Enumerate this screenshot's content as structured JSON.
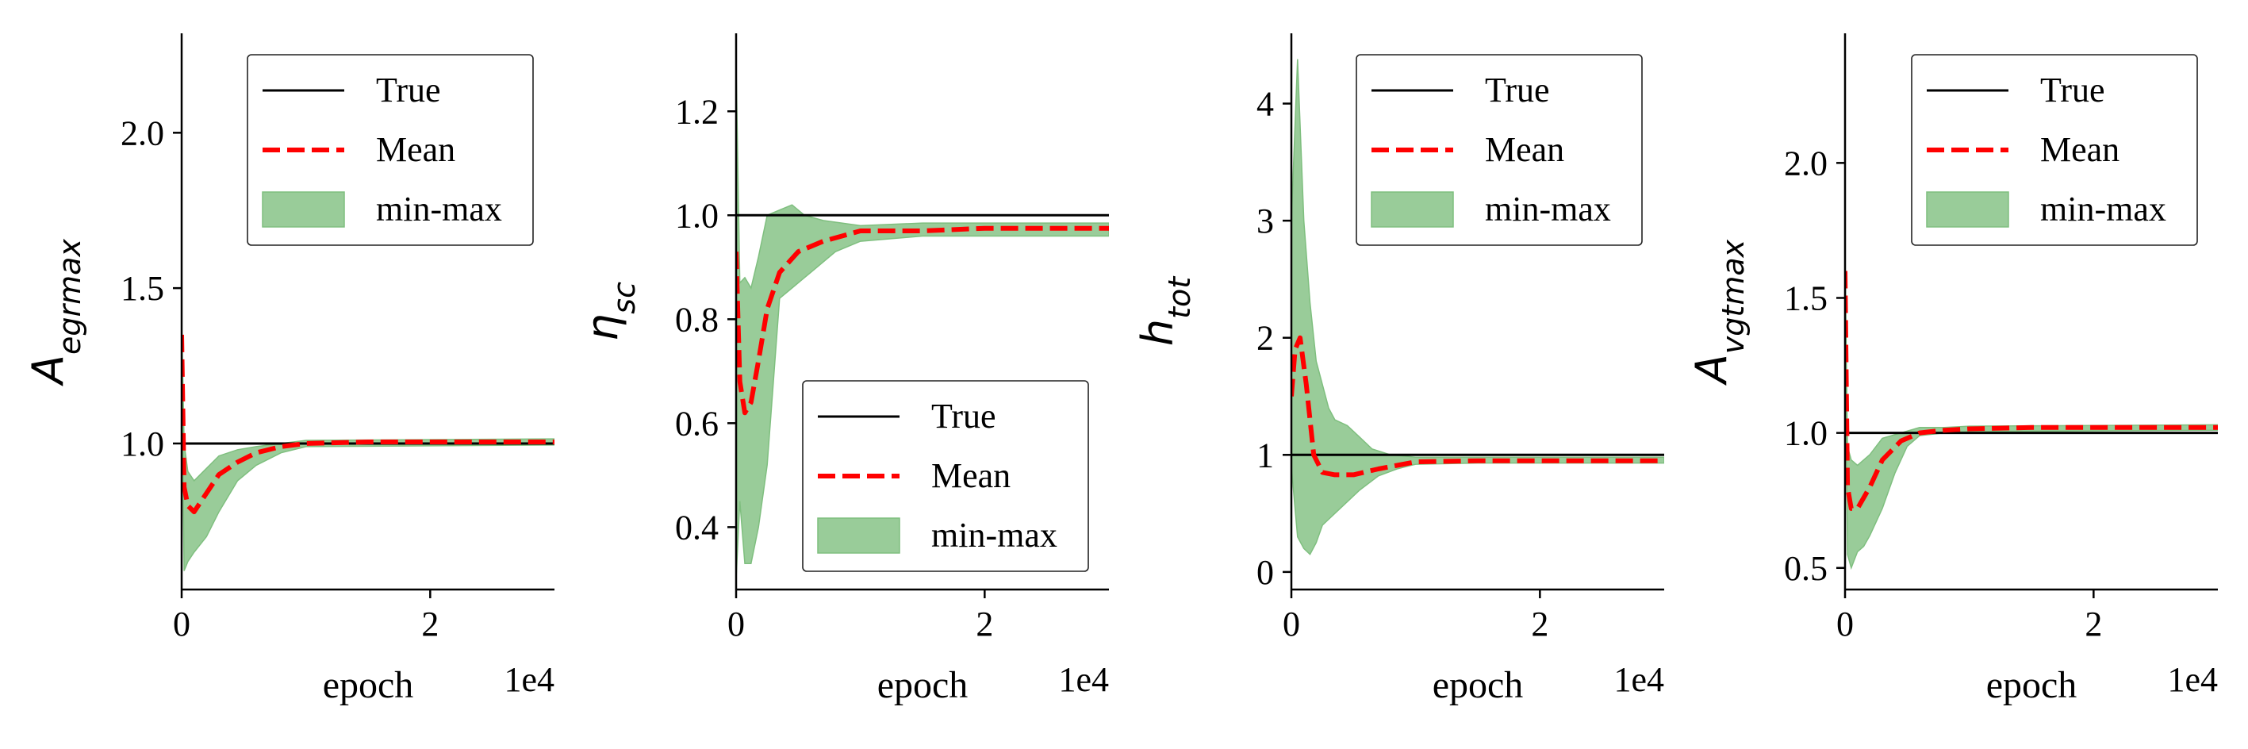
{
  "chart_data": [
    {
      "type": "line",
      "ylabel": "A",
      "ylabel_sub": "egrmax",
      "xlabel": "epoch",
      "x_exponent": "1e4",
      "xlim": [
        0,
        3
      ],
      "ylim": [
        0.53,
        2.32
      ],
      "xticks": [
        0,
        2
      ],
      "yticks": [
        1.0,
        1.5,
        2.0
      ],
      "ytick_labels": [
        "1.0",
        "1.5",
        "2.0"
      ],
      "legend_position": "upper right",
      "true_value": 1.0,
      "series": [
        {
          "name": "Mean",
          "x": [
            0,
            0.02,
            0.05,
            0.1,
            0.2,
            0.3,
            0.45,
            0.6,
            0.8,
            1.0,
            1.5,
            2.0,
            3.0
          ],
          "values": [
            1.35,
            0.86,
            0.8,
            0.78,
            0.84,
            0.9,
            0.94,
            0.97,
            0.99,
            1.0,
            1.005,
            1.005,
            1.005
          ]
        },
        {
          "name": "min-max upper",
          "x": [
            0,
            0.02,
            0.05,
            0.1,
            0.2,
            0.3,
            0.45,
            0.6,
            0.8,
            1.0,
            3.0
          ],
          "values": [
            1.4,
            1.0,
            0.91,
            0.88,
            0.92,
            0.96,
            0.98,
            0.99,
            1.0,
            1.01,
            1.015
          ]
        },
        {
          "name": "min-max lower",
          "x": [
            0,
            0.02,
            0.05,
            0.1,
            0.2,
            0.3,
            0.45,
            0.6,
            0.8,
            1.0,
            3.0
          ],
          "values": [
            1.3,
            0.59,
            0.62,
            0.65,
            0.7,
            0.78,
            0.88,
            0.93,
            0.97,
            0.99,
            0.995
          ]
        }
      ]
    },
    {
      "type": "line",
      "ylabel": "η",
      "ylabel_sub": "sc",
      "xlabel": "epoch",
      "x_exponent": "1e4",
      "xlim": [
        0,
        3
      ],
      "ylim": [
        0.28,
        1.35
      ],
      "xticks": [
        0,
        2
      ],
      "yticks": [
        0.4,
        0.6,
        0.8,
        1.0,
        1.2
      ],
      "ytick_labels": [
        "0.4",
        "0.6",
        "0.8",
        "1.0",
        "1.2"
      ],
      "legend_position": "lower right",
      "true_value": 1.0,
      "series": [
        {
          "name": "Mean",
          "x": [
            0,
            0.03,
            0.07,
            0.12,
            0.18,
            0.25,
            0.35,
            0.5,
            0.7,
            1.0,
            1.5,
            2.0,
            3.0
          ],
          "values": [
            0.93,
            0.68,
            0.62,
            0.64,
            0.72,
            0.82,
            0.89,
            0.93,
            0.95,
            0.97,
            0.97,
            0.975,
            0.975
          ]
        },
        {
          "name": "min-max upper",
          "x": [
            0,
            0.03,
            0.07,
            0.12,
            0.18,
            0.25,
            0.35,
            0.45,
            0.55,
            0.7,
            1.0,
            1.5,
            3.0
          ],
          "values": [
            1.29,
            0.87,
            0.88,
            0.86,
            0.92,
            1.0,
            1.01,
            1.02,
            1.0,
            0.99,
            0.98,
            0.985,
            0.985
          ]
        },
        {
          "name": "min-max lower",
          "x": [
            0,
            0.03,
            0.07,
            0.12,
            0.18,
            0.25,
            0.3,
            0.35,
            0.45,
            0.6,
            0.8,
            1.0,
            1.5,
            3.0
          ],
          "values": [
            0.3,
            0.45,
            0.33,
            0.33,
            0.4,
            0.52,
            0.68,
            0.84,
            0.86,
            0.89,
            0.93,
            0.95,
            0.96,
            0.96
          ]
        }
      ]
    },
    {
      "type": "line",
      "ylabel": "h",
      "ylabel_sub": "tot",
      "xlabel": "epoch",
      "x_exponent": "1e4",
      "xlim": [
        0,
        3
      ],
      "ylim": [
        -0.15,
        4.6
      ],
      "xticks": [
        0,
        2
      ],
      "yticks": [
        0,
        1,
        2,
        3,
        4
      ],
      "ytick_labels": [
        "0",
        "1",
        "2",
        "3",
        "4"
      ],
      "legend_position": "upper right",
      "true_value": 1.0,
      "series": [
        {
          "name": "Mean",
          "x": [
            0,
            0.03,
            0.07,
            0.12,
            0.18,
            0.25,
            0.35,
            0.5,
            0.7,
            1.0,
            1.5,
            2.0,
            3.0
          ],
          "values": [
            1.5,
            1.9,
            2.0,
            1.6,
            1.0,
            0.85,
            0.83,
            0.83,
            0.88,
            0.94,
            0.95,
            0.95,
            0.95
          ]
        },
        {
          "name": "min-max upper",
          "x": [
            0,
            0.05,
            0.1,
            0.15,
            0.2,
            0.3,
            0.35,
            0.45,
            0.55,
            0.65,
            0.8,
            1.0,
            1.5,
            3.0
          ],
          "values": [
            3.0,
            4.38,
            3.0,
            2.3,
            1.8,
            1.4,
            1.3,
            1.25,
            1.15,
            1.05,
            1.0,
            0.98,
            0.98,
            0.98
          ]
        },
        {
          "name": "min-max lower",
          "x": [
            0,
            0.05,
            0.1,
            0.15,
            0.2,
            0.25,
            0.3,
            0.4,
            0.55,
            0.7,
            0.85,
            1.0,
            1.5,
            3.0
          ],
          "values": [
            0.9,
            0.3,
            0.2,
            0.15,
            0.25,
            0.4,
            0.45,
            0.55,
            0.7,
            0.82,
            0.88,
            0.92,
            0.93,
            0.93
          ]
        }
      ]
    },
    {
      "type": "line",
      "ylabel": "A",
      "ylabel_sub": "vgtmax",
      "xlabel": "epoch",
      "x_exponent": "1e4",
      "xlim": [
        0,
        3
      ],
      "ylim": [
        0.42,
        2.48
      ],
      "xticks": [
        0,
        2
      ],
      "yticks": [
        0.5,
        1.0,
        1.5,
        2.0
      ],
      "ytick_labels": [
        "0.5",
        "1.0",
        "1.5",
        "2.0"
      ],
      "legend_position": "upper right",
      "true_value": 1.0,
      "series": [
        {
          "name": "Mean",
          "x": [
            0,
            0.02,
            0.05,
            0.1,
            0.2,
            0.3,
            0.45,
            0.6,
            0.8,
            1.0,
            1.5,
            2.0,
            3.0
          ],
          "values": [
            1.6,
            0.8,
            0.72,
            0.72,
            0.8,
            0.9,
            0.97,
            1.0,
            1.01,
            1.015,
            1.02,
            1.02,
            1.02
          ]
        },
        {
          "name": "min-max upper",
          "x": [
            0,
            0.02,
            0.05,
            0.1,
            0.2,
            0.3,
            0.45,
            0.6,
            0.8,
            1.0,
            3.0
          ],
          "values": [
            1.65,
            0.95,
            0.9,
            0.88,
            0.92,
            0.98,
            1.0,
            1.02,
            1.02,
            1.025,
            1.03
          ]
        },
        {
          "name": "min-max lower",
          "x": [
            0,
            0.02,
            0.05,
            0.1,
            0.15,
            0.2,
            0.3,
            0.4,
            0.5,
            0.6,
            0.8,
            1.0,
            3.0
          ],
          "values": [
            1.5,
            0.55,
            0.5,
            0.56,
            0.58,
            0.62,
            0.72,
            0.85,
            0.95,
            0.99,
            1.0,
            1.005,
            1.01
          ]
        }
      ]
    }
  ],
  "legend": {
    "items": [
      {
        "label": "True",
        "kind": "line",
        "color": "#000000"
      },
      {
        "label": "Mean",
        "kind": "dashed",
        "color": "#ff0000"
      },
      {
        "label": "min-max",
        "kind": "patch",
        "color": "#99cc99",
        "edge": "#7fbf7f"
      }
    ]
  },
  "colors": {
    "true_line": "#000000",
    "mean_line": "#ff0000",
    "band_fill": "#99cc99",
    "band_edge": "#7fbf7f"
  }
}
